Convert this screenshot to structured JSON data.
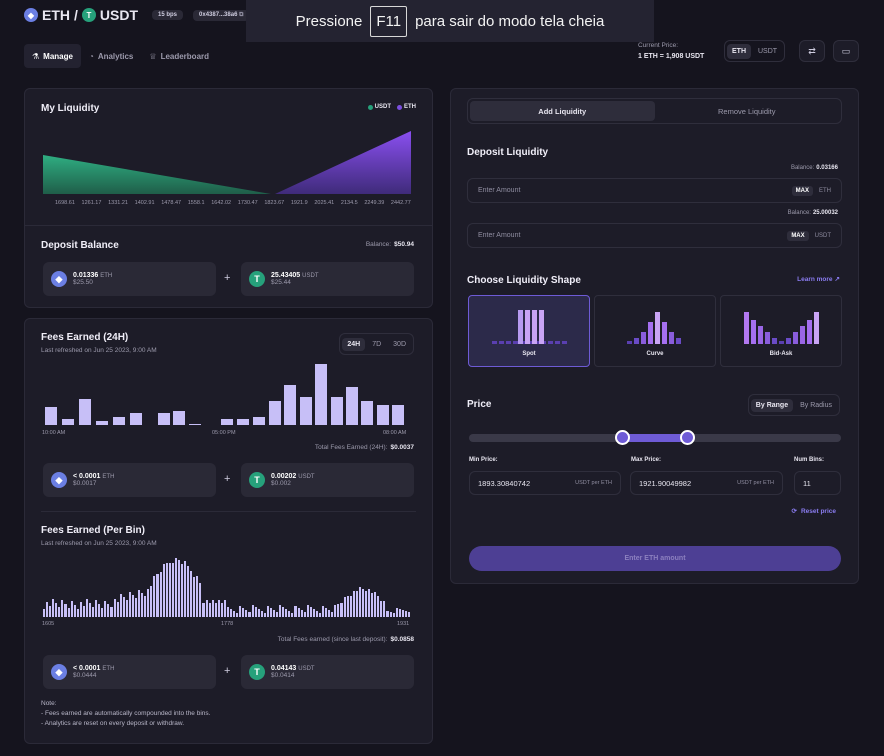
{
  "header": {
    "pair_base": "ETH",
    "pair_sep": "/",
    "pair_quote": "USDT",
    "fee_badge": "15 bps",
    "address": "0x4387...38a6",
    "fullscreen_prefix": "Pressione",
    "fullscreen_key": "F11",
    "fullscreen_suffix": "para sair do modo tela cheia"
  },
  "nav": {
    "tabs": [
      {
        "label": "Manage",
        "icon": "beaker-icon",
        "active": true
      },
      {
        "label": "Analytics",
        "icon": "chart-icon",
        "active": false
      },
      {
        "label": "Leaderboard",
        "icon": "trophy-icon",
        "active": false
      }
    ],
    "current_price_label": "Current Price:",
    "current_price_value": "1 ETH = 1,908 USDT",
    "toggle": [
      "ETH",
      "USDT"
    ],
    "toggle_selected": "ETH"
  },
  "my_liquidity": {
    "title": "My Liquidity",
    "legend": [
      {
        "name": "USDT",
        "color": "#26a17b"
      },
      {
        "name": "ETH",
        "color": "#7b4fe0"
      }
    ],
    "x_ticks": [
      "1698.61",
      "1261.17",
      "1331.21",
      "1402.91",
      "1478.47",
      "1558.1",
      "1642.02",
      "1730.47",
      "1823.67",
      "1921.9",
      "2025.41",
      "2134.5",
      "2249.39",
      "2442.77"
    ]
  },
  "deposit_balance": {
    "title": "Deposit Balance",
    "balance_label": "Balance:",
    "balance_value": "$50.94",
    "eth": {
      "amount": "0.01336",
      "unit": "ETH",
      "usd": "$25.50"
    },
    "usdt": {
      "amount": "25.43405",
      "unit": "USDT",
      "usd": "$25.44"
    },
    "plus": "+"
  },
  "fees24": {
    "title": "Fees Earned (24H)",
    "refreshed": "Last refreshed on Jun 25 2023, 9:00 AM",
    "ranges": [
      "24H",
      "7D",
      "30D"
    ],
    "selected_range": "24H",
    "x_ticks": [
      "10:00 AM",
      "05:00 PM",
      "08:00 AM"
    ],
    "total_label": "Total Fees Earned (24H):",
    "total_value": "$0.0037",
    "eth": {
      "amount": "< 0.0001",
      "unit": "ETH",
      "usd": "$0.0017"
    },
    "usdt": {
      "amount": "0.00202",
      "unit": "USDT",
      "usd": "$0.002"
    },
    "plus": "+"
  },
  "fees_bin": {
    "title": "Fees Earned (Per Bin)",
    "refreshed": "Last refreshed on Jun 25 2023, 9:00 AM",
    "x_ticks": [
      "1605",
      "1778",
      "1931"
    ],
    "total_label": "Total Fees earned (since last deposit):",
    "total_value": "$0.0858",
    "eth": {
      "amount": "< 0.0001",
      "unit": "ETH",
      "usd": "$0.0444"
    },
    "usdt": {
      "amount": "0.04143",
      "unit": "USDT",
      "usd": "$0.0414"
    },
    "plus": "+",
    "note_title": "Note:",
    "notes": [
      "- Fees earned are automatically compounded into the bins.",
      "- Analytics are reset on every deposit or withdraw."
    ]
  },
  "right_panel": {
    "tabs": [
      "Add Liquidity",
      "Remove Liquidity"
    ],
    "selected_tab": "Add Liquidity",
    "deposit_title": "Deposit Liquidity",
    "eth_balance_label": "Balance:",
    "eth_balance_value": "0.03166",
    "eth_placeholder": "Enter Amount",
    "eth_max": "MAX",
    "eth_unit": "ETH",
    "usdt_balance_label": "Balance:",
    "usdt_balance_value": "25.00032",
    "usdt_placeholder": "Enter Amount",
    "usdt_max": "MAX",
    "usdt_unit": "USDT",
    "shape_title": "Choose Liquidity Shape",
    "learn_more": "Learn more",
    "shapes": [
      "Spot",
      "Curve",
      "Bid-Ask"
    ],
    "selected_shape": "Spot",
    "price_title": "Price",
    "price_modes": [
      "By Range",
      "By Radius"
    ],
    "selected_price_mode": "By Range",
    "min_price_label": "Min Price:",
    "min_price_value": "1893.30840742",
    "min_price_unit": "USDT per ETH",
    "max_price_label": "Max Price:",
    "max_price_value": "1921.90049982",
    "max_price_unit": "USDT per ETH",
    "num_bins_label": "Num Bins:",
    "num_bins_value": "11",
    "reset_price": "Reset price",
    "submit_label": "Enter ETH amount"
  },
  "colors": {
    "accent": "#6e5bd6",
    "usdt": "#26a17b",
    "eth": "#7b4fe0",
    "bar": "#c7bff7"
  }
}
